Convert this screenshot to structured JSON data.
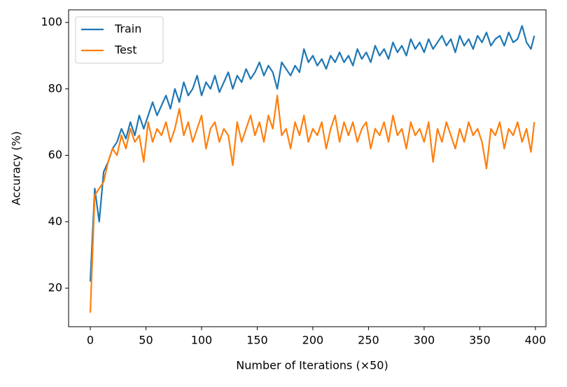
{
  "chart_data": {
    "type": "line",
    "xlabel": "Number of Iterations (×50)",
    "ylabel": "Accuracy (%)",
    "x": [
      0,
      4,
      8,
      12,
      16,
      20,
      24,
      28,
      32,
      36,
      40,
      44,
      48,
      52,
      56,
      60,
      64,
      68,
      72,
      76,
      80,
      84,
      88,
      92,
      96,
      100,
      104,
      108,
      112,
      116,
      120,
      124,
      128,
      132,
      136,
      140,
      144,
      148,
      152,
      156,
      160,
      164,
      168,
      172,
      176,
      180,
      184,
      188,
      192,
      196,
      200,
      204,
      208,
      212,
      216,
      220,
      224,
      228,
      232,
      236,
      240,
      244,
      248,
      252,
      256,
      260,
      264,
      268,
      272,
      276,
      280,
      284,
      288,
      292,
      296,
      300,
      304,
      308,
      312,
      316,
      320,
      324,
      328,
      332,
      336,
      340,
      344,
      348,
      352,
      356,
      360,
      364,
      368,
      372,
      376,
      380,
      384,
      388,
      392,
      396,
      399
    ],
    "series": [
      {
        "name": "Train",
        "color": "#1f77b4",
        "values": [
          22,
          50,
          40,
          55,
          58,
          62,
          64,
          68,
          65,
          70,
          66,
          72,
          68,
          72,
          76,
          72,
          75,
          78,
          74,
          80,
          76,
          82,
          78,
          80,
          84,
          78,
          82,
          80,
          84,
          79,
          82,
          85,
          80,
          84,
          82,
          86,
          83,
          85,
          88,
          84,
          87,
          85,
          80,
          88,
          86,
          84,
          87,
          85,
          92,
          88,
          90,
          87,
          89,
          86,
          90,
          88,
          91,
          88,
          90,
          87,
          92,
          89,
          91,
          88,
          93,
          90,
          92,
          89,
          94,
          91,
          93,
          90,
          95,
          92,
          94,
          91,
          95,
          92,
          94,
          96,
          93,
          95,
          91,
          96,
          93,
          95,
          92,
          96,
          94,
          97,
          93,
          95,
          96,
          93,
          97,
          94,
          95,
          99,
          94,
          92,
          96
        ]
      },
      {
        "name": "Test",
        "color": "#ff7f0e",
        "values": [
          12.6,
          48,
          50,
          52,
          58,
          62,
          60,
          66,
          62,
          68,
          64,
          66,
          58,
          70,
          64,
          68,
          66,
          70,
          64,
          68,
          74,
          66,
          70,
          64,
          68,
          72,
          62,
          68,
          70,
          64,
          68,
          66,
          57,
          70,
          64,
          68,
          72,
          66,
          70,
          64,
          72,
          68,
          78,
          66,
          68,
          62,
          70,
          66,
          72,
          64,
          68,
          66,
          70,
          62,
          68,
          72,
          64,
          70,
          66,
          70,
          64,
          68,
          70,
          62,
          68,
          66,
          70,
          64,
          72,
          66,
          68,
          62,
          70,
          66,
          68,
          64,
          70,
          58,
          68,
          64,
          70,
          66,
          62,
          68,
          64,
          70,
          66,
          68,
          64,
          56,
          68,
          66,
          70,
          62,
          68,
          66,
          70,
          64,
          68,
          61,
          70
        ]
      }
    ],
    "xlim": [
      -19.5,
      409.5
    ],
    "xticks": [
      0,
      50,
      100,
      150,
      200,
      250,
      300,
      350,
      400
    ],
    "ylim": [
      8.4,
      103.8
    ],
    "yticks": [
      20,
      40,
      60,
      80,
      100
    ],
    "legend": "upper left"
  }
}
